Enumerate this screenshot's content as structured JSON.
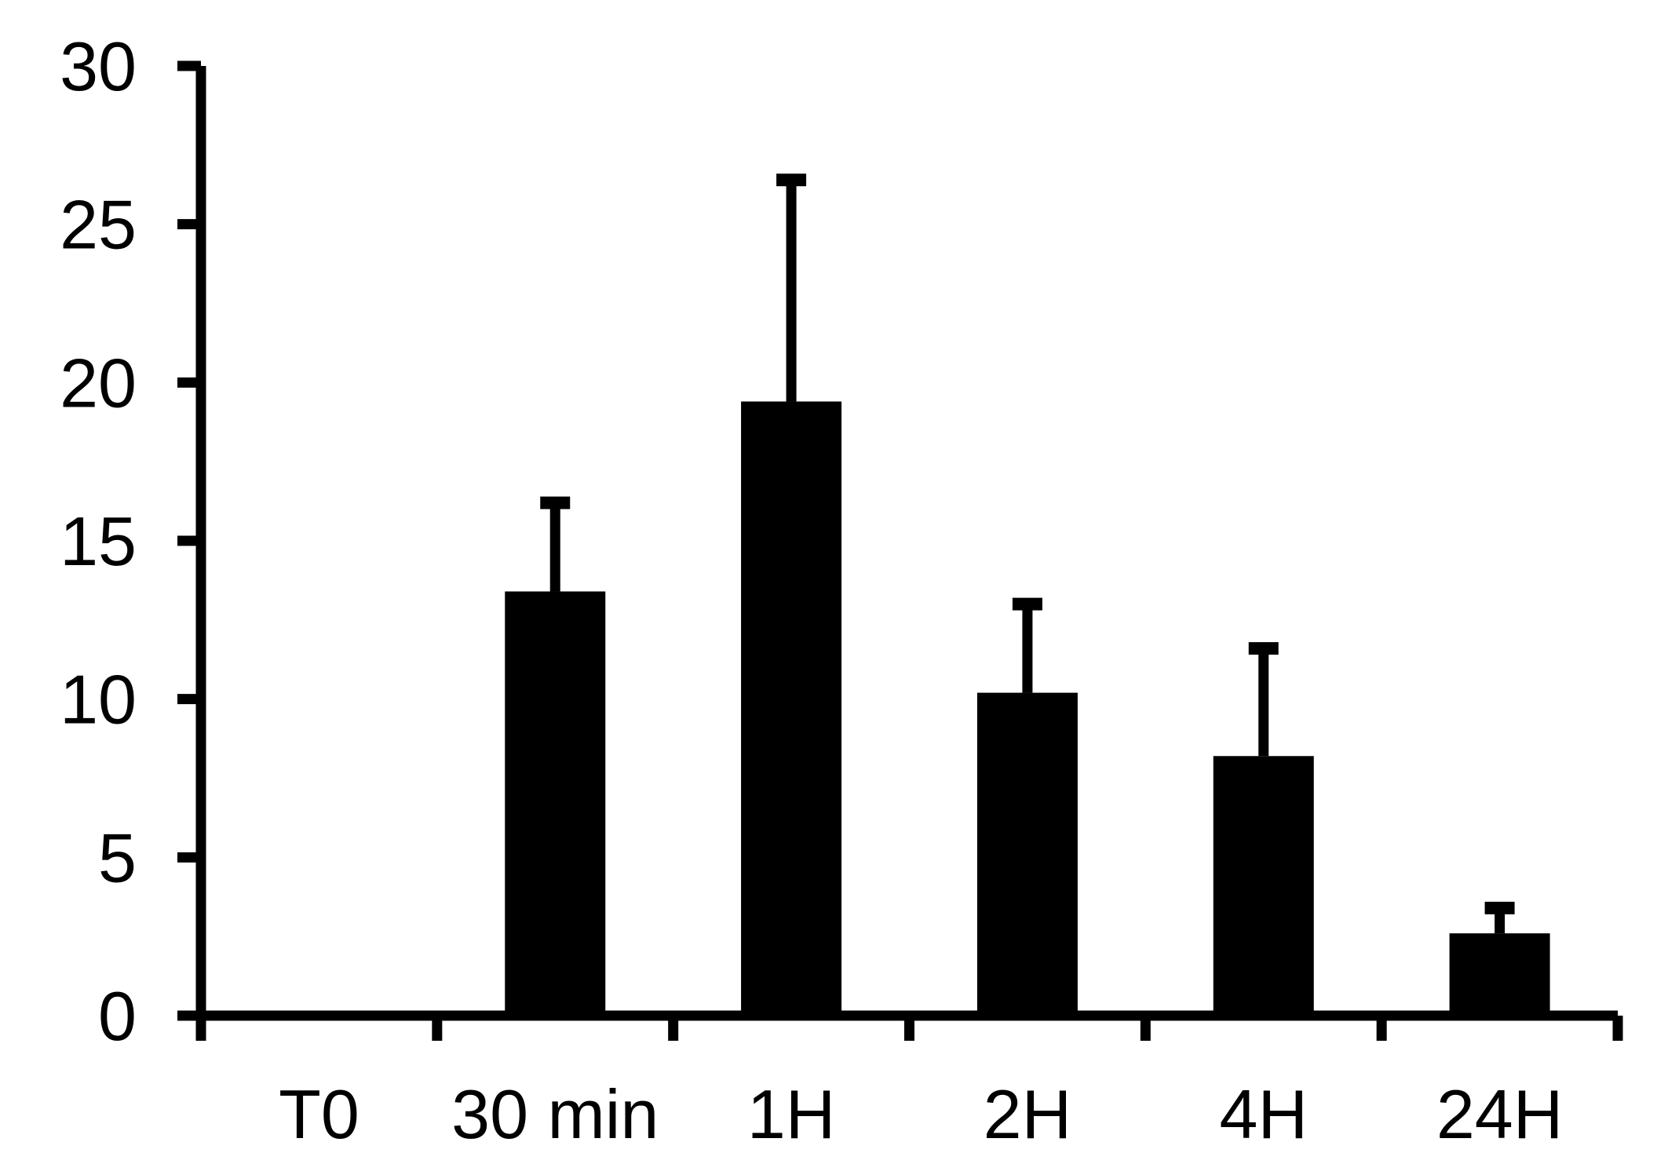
{
  "chart_data": {
    "type": "bar",
    "categories": [
      "T0",
      "30 min",
      "1H",
      "2H",
      "4H",
      "24H"
    ],
    "values": [
      0,
      13.4,
      19.4,
      10.2,
      8.2,
      2.6
    ],
    "error_upper": [
      0,
      16.2,
      26.4,
      13.0,
      11.6,
      3.4
    ],
    "yticks": [
      "0",
      "5",
      "10",
      "15",
      "20",
      "25",
      "30"
    ],
    "ylim": [
      0,
      30
    ],
    "grid": false,
    "colors": {
      "bar": "#000000",
      "axis": "#000000",
      "background": "#ffffff"
    }
  }
}
